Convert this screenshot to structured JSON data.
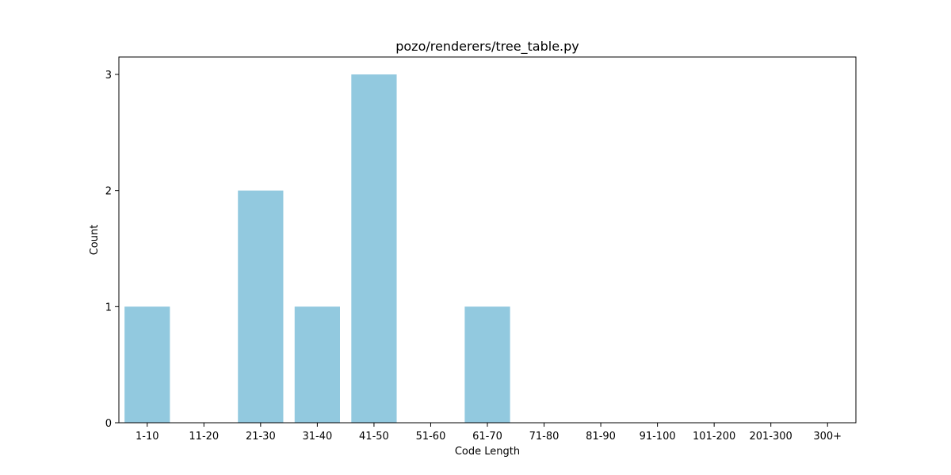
{
  "chart_data": {
    "type": "bar",
    "title": "pozo/renderers/tree_table.py",
    "xlabel": "Code Length",
    "ylabel": "Count",
    "categories": [
      "1-10",
      "11-20",
      "21-30",
      "31-40",
      "41-50",
      "51-60",
      "61-70",
      "71-80",
      "81-90",
      "91-100",
      "101-200",
      "201-300",
      "300+"
    ],
    "values": [
      1,
      0,
      2,
      1,
      3,
      0,
      1,
      0,
      0,
      0,
      0,
      0,
      0
    ],
    "yticks": [
      0,
      1,
      2,
      3
    ],
    "ylim": [
      0,
      3.15
    ],
    "grid": false,
    "bar_color": "#92c9df"
  }
}
